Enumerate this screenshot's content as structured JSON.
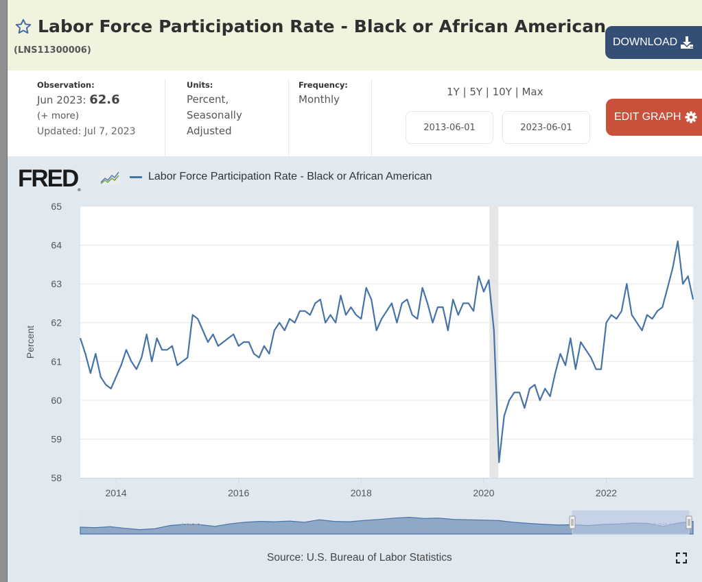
{
  "header": {
    "title": "Labor Force Participation Rate - Black or African American",
    "series_id": "(LNS11300006)",
    "download_label": "DOWNLOAD",
    "star_icon": "star-outline-icon",
    "download_icon": "download-icon"
  },
  "meta": {
    "observation_label": "Observation:",
    "observation_date": "Jun 2023:",
    "observation_value": "62.6",
    "more_link": "(+ more)",
    "updated": "Updated: Jul 7, 2023",
    "units_label": "Units:",
    "units_line1": "Percent,",
    "units_line2": "Seasonally",
    "units_line3": "Adjusted",
    "frequency_label": "Frequency:",
    "frequency_value": "Monthly"
  },
  "controls": {
    "ranges": [
      "1Y",
      "5Y",
      "10Y",
      "Max"
    ],
    "range_separator": " | ",
    "start_date": "2013-06-01",
    "end_date": "2023-06-01",
    "edit_graph_label": "EDIT GRAPH",
    "edit_icon": "gear-icon"
  },
  "footer": {
    "source": "Source: U.S. Bureau of Labor Statistics",
    "fullscreen_icon": "fullscreen-icon"
  },
  "colors": {
    "line": "#4572a7",
    "header_bg": "#f1f3de",
    "chart_bg": "#e1e9f0",
    "download_btn": "#354e75",
    "edit_btn": "#c9503a",
    "recession": "#e6e6e6",
    "navigator_fill": "#8fa8c7",
    "navigator_selected": "#b6c7e2"
  },
  "chart_data": {
    "type": "line",
    "title": "Labor Force Participation Rate - Black or African American",
    "logo": "FRED",
    "legend": [
      "Labor Force Participation Rate - Black or African American"
    ],
    "legend_position": "top-left",
    "xlabel": "",
    "ylabel": "Percent",
    "ylim": [
      58,
      65
    ],
    "yticks": [
      58,
      59,
      60,
      61,
      62,
      63,
      64,
      65
    ],
    "xticks": [
      "2014",
      "2016",
      "2018",
      "2020",
      "2022"
    ],
    "x_start": "2013-06",
    "x_end": "2023-06",
    "grid": true,
    "recession_shading": {
      "start": "2020-02",
      "end": "2020-04"
    },
    "series": [
      {
        "name": "Labor Force Participation Rate - Black or African American",
        "frequency": "monthly",
        "start": "2013-06",
        "values": [
          61.6,
          61.2,
          60.7,
          61.2,
          60.6,
          60.4,
          60.3,
          60.6,
          60.9,
          61.3,
          61.0,
          60.8,
          61.1,
          61.7,
          61.0,
          61.6,
          61.3,
          61.3,
          61.4,
          60.9,
          61.0,
          61.1,
          62.2,
          62.1,
          61.8,
          61.5,
          61.7,
          61.4,
          61.5,
          61.6,
          61.7,
          61.4,
          61.5,
          61.5,
          61.2,
          61.1,
          61.4,
          61.2,
          61.8,
          62.0,
          61.8,
          62.1,
          62.0,
          62.3,
          62.3,
          62.2,
          62.5,
          62.6,
          62.0,
          62.2,
          62.0,
          62.7,
          62.2,
          62.4,
          62.2,
          62.1,
          62.9,
          62.6,
          61.8,
          62.1,
          62.3,
          62.5,
          62.0,
          62.5,
          62.6,
          62.2,
          62.1,
          62.9,
          62.5,
          62.0,
          62.4,
          62.4,
          61.8,
          62.6,
          62.2,
          62.5,
          62.5,
          62.3,
          63.2,
          62.8,
          63.1,
          61.8,
          58.4,
          59.6,
          60.0,
          60.2,
          60.2,
          59.8,
          60.3,
          60.4,
          60.0,
          60.3,
          60.1,
          60.7,
          61.2,
          60.9,
          61.6,
          60.8,
          61.5,
          61.3,
          61.1,
          60.8,
          60.8,
          62.0,
          62.2,
          62.1,
          62.3,
          63.0,
          62.2,
          62.0,
          61.8,
          62.2,
          62.1,
          62.3,
          62.4,
          62.9,
          63.4,
          64.1,
          63.0,
          63.2,
          62.6
        ]
      }
    ],
    "navigator": {
      "tick_labels": [
        "1980",
        "2000",
        "2020"
      ],
      "selected_range": [
        "2013-06",
        "2023-06"
      ]
    }
  }
}
